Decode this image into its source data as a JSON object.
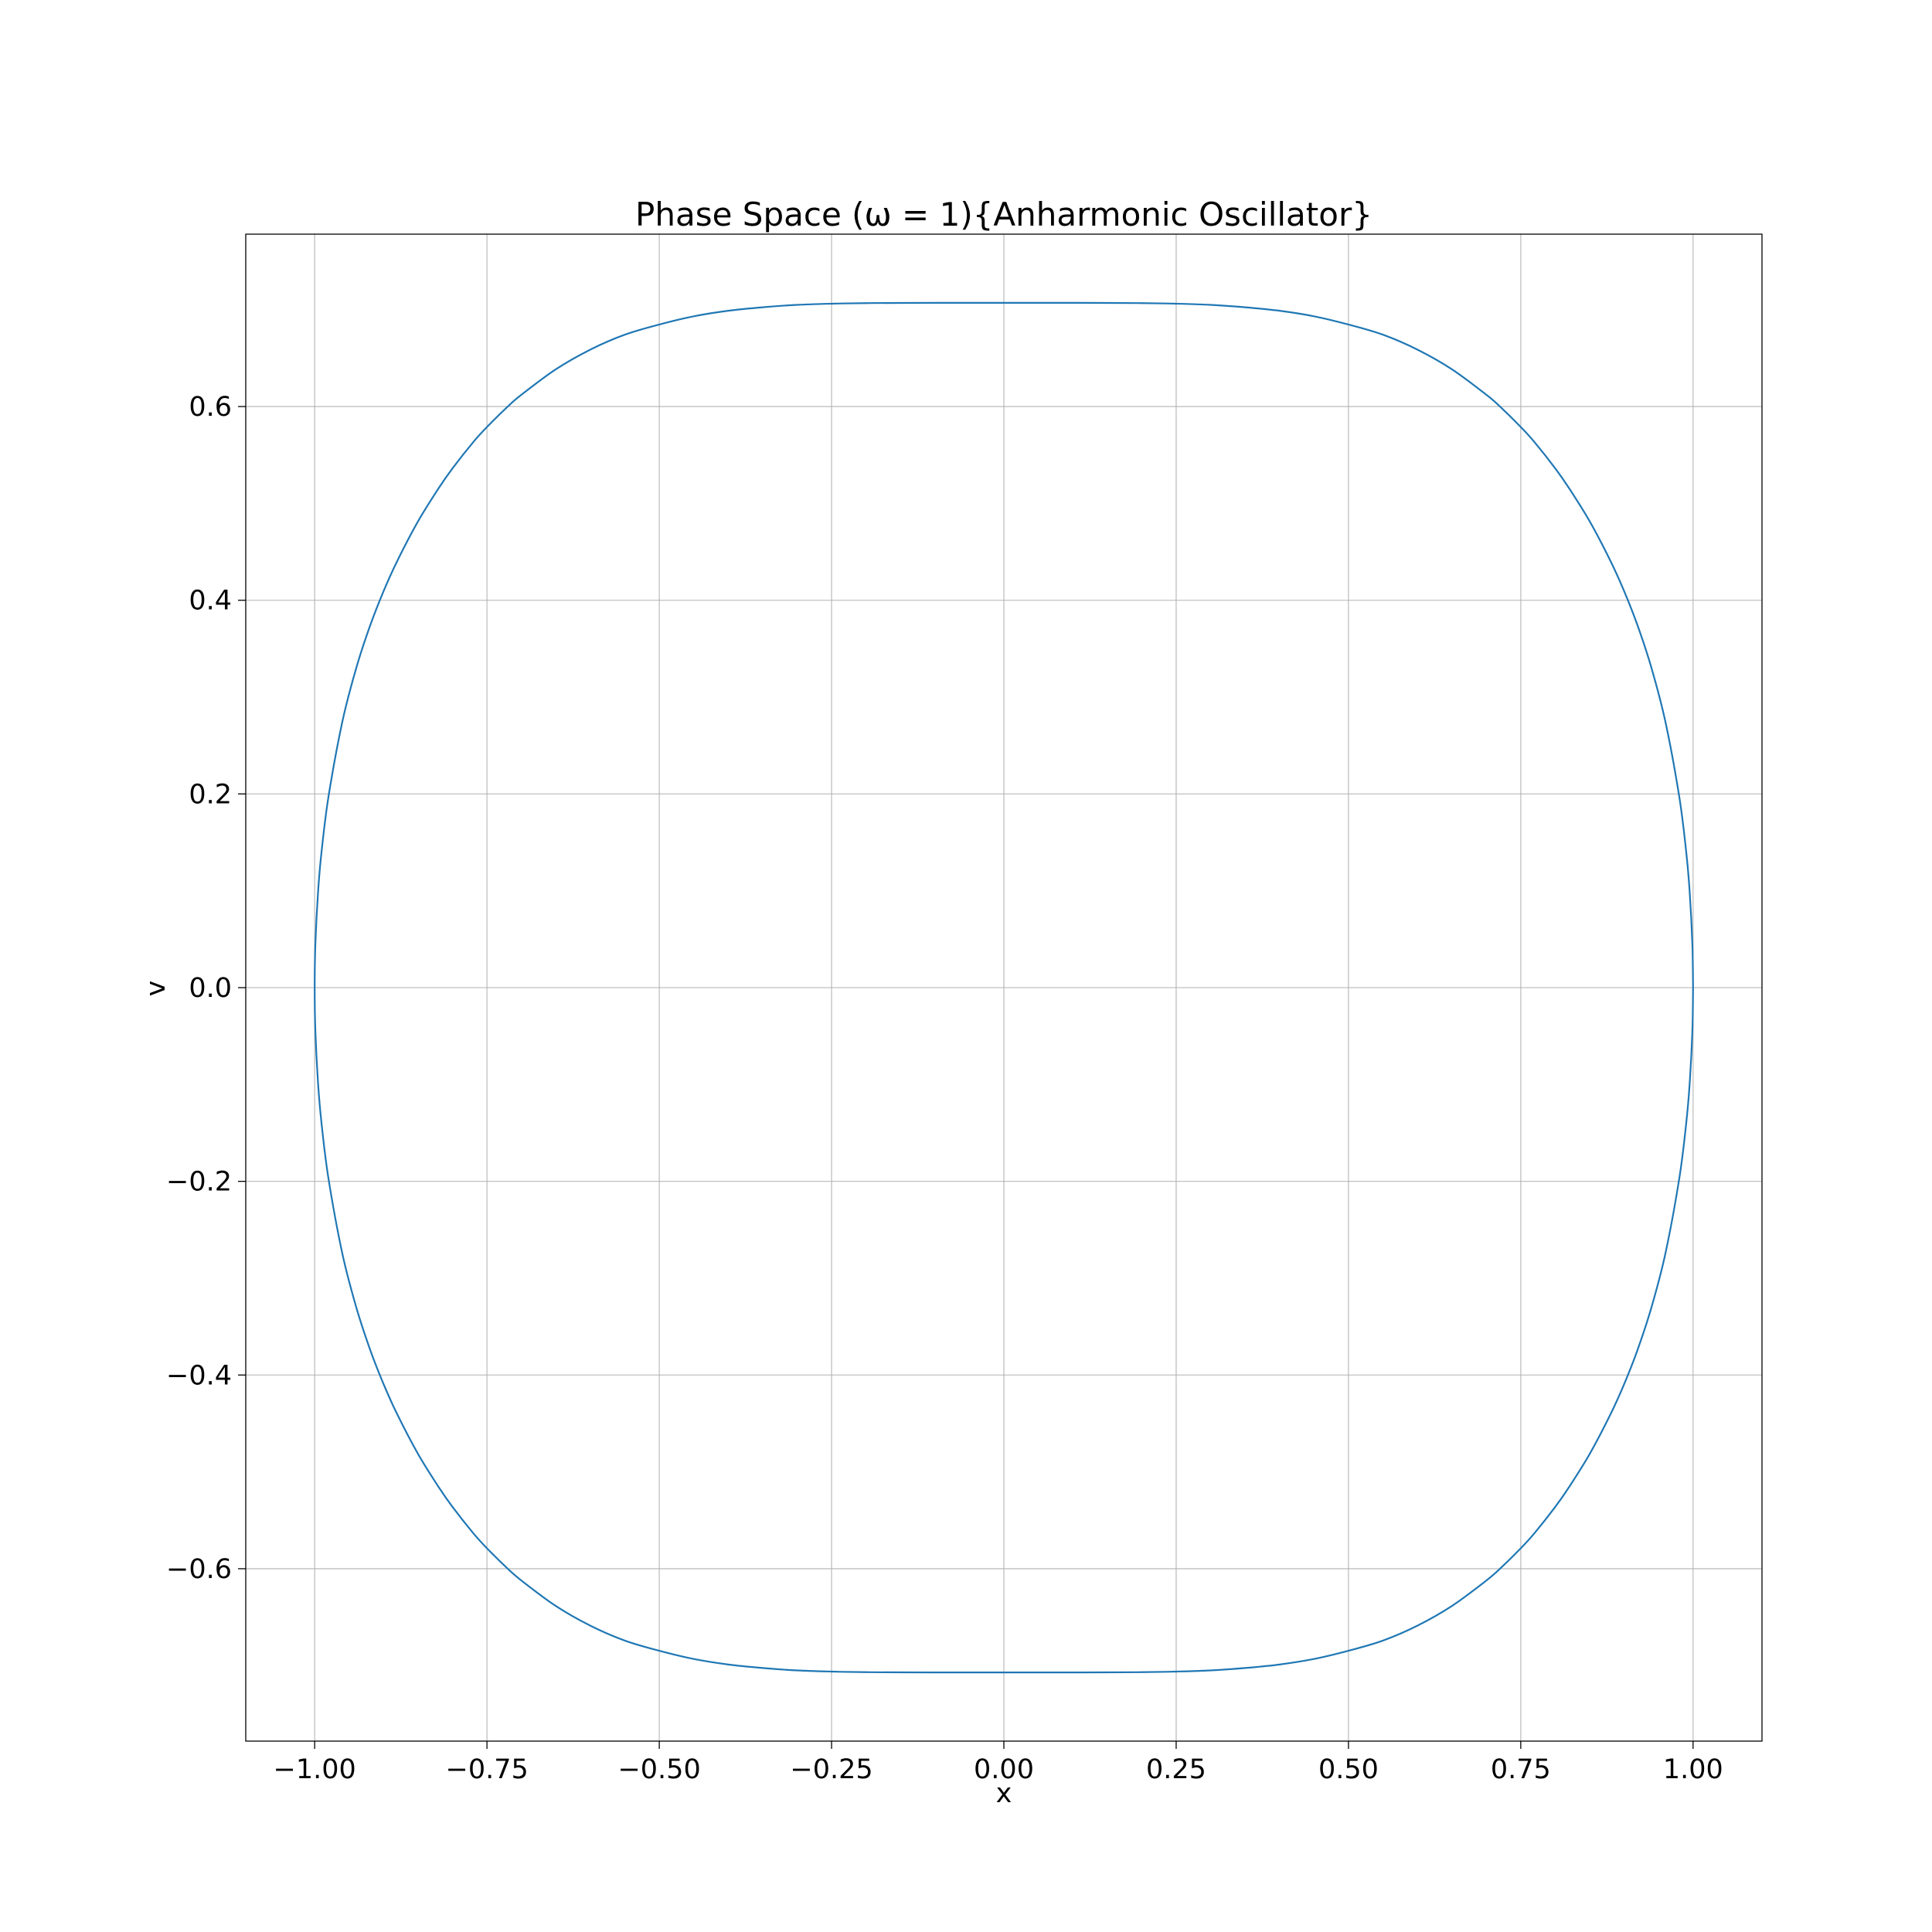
{
  "chart_data": {
    "type": "line",
    "title": "Phase Space (ω = 1){Anharmonic Oscillator}",
    "xlabel": "x",
    "ylabel": "v",
    "xlim": [
      -1.1,
      1.1
    ],
    "ylim": [
      -0.778,
      0.778
    ],
    "xticks": [
      -1.0,
      -0.75,
      -0.5,
      -0.25,
      0.0,
      0.25,
      0.5,
      0.75,
      1.0
    ],
    "xtick_labels": [
      "−1.00",
      "−0.75",
      "−0.50",
      "−0.25",
      "0.00",
      "0.25",
      "0.50",
      "0.75",
      "1.00"
    ],
    "yticks": [
      -0.6,
      -0.4,
      -0.2,
      0.0,
      0.2,
      0.4,
      0.6
    ],
    "ytick_labels": [
      "−0.6",
      "−0.4",
      "−0.2",
      "0.0",
      "0.2",
      "0.4",
      "0.6"
    ],
    "grid": true,
    "legend": "none",
    "series": [
      {
        "color": "#1f77b4",
        "x": [
          1.0,
          0.999,
          0.995,
          0.99,
          0.98,
          0.96,
          0.94,
          0.92,
          0.9,
          0.88,
          0.85,
          0.82,
          0.8,
          0.77,
          0.75,
          0.72,
          0.7,
          0.65,
          0.6,
          0.55,
          0.5,
          0.45,
          0.4,
          0.35,
          0.3,
          0.25,
          0.2,
          0.15,
          0.1,
          0.05,
          0.0,
          -0.05,
          -0.1,
          -0.15,
          -0.2,
          -0.25,
          -0.3,
          -0.35,
          -0.4,
          -0.45,
          -0.5,
          -0.55,
          -0.6,
          -0.65,
          -0.7,
          -0.72,
          -0.75,
          -0.77,
          -0.8,
          -0.82,
          -0.85,
          -0.88,
          -0.9,
          -0.92,
          -0.94,
          -0.96,
          -0.98,
          -0.99,
          -0.995,
          -0.999,
          -1.0,
          -0.999,
          -0.995,
          -0.99,
          -0.98,
          -0.96,
          -0.94,
          -0.92,
          -0.9,
          -0.88,
          -0.85,
          -0.82,
          -0.8,
          -0.77,
          -0.75,
          -0.72,
          -0.7,
          -0.65,
          -0.6,
          -0.55,
          -0.5,
          -0.45,
          -0.4,
          -0.35,
          -0.3,
          -0.25,
          -0.2,
          -0.15,
          -0.1,
          -0.05,
          0.0,
          0.05,
          0.1,
          0.15,
          0.2,
          0.25,
          0.3,
          0.35,
          0.4,
          0.45,
          0.5,
          0.55,
          0.6,
          0.65,
          0.7,
          0.72,
          0.75,
          0.77,
          0.8,
          0.82,
          0.85,
          0.88,
          0.9,
          0.92,
          0.94,
          0.96,
          0.98,
          0.99,
          0.995,
          0.999,
          1.0
        ],
        "y": [
          0.0,
          0.0447,
          0.0997,
          0.1404,
          0.197,
          0.2741,
          0.3292,
          0.3729,
          0.4094,
          0.4408,
          0.4815,
          0.5158,
          0.5362,
          0.5632,
          0.5789,
          0.5999,
          0.6122,
          0.6385,
          0.6588,
          0.6742,
          0.6847,
          0.6932,
          0.6989,
          0.7025,
          0.705,
          0.7062,
          0.7068,
          0.707,
          0.7071,
          0.7071,
          0.7071,
          0.7071,
          0.7071,
          0.707,
          0.7068,
          0.7062,
          0.705,
          0.7025,
          0.6989,
          0.6932,
          0.6847,
          0.6742,
          0.6588,
          0.6385,
          0.6122,
          0.5999,
          0.5789,
          0.5632,
          0.5362,
          0.5158,
          0.4815,
          0.4408,
          0.4094,
          0.3729,
          0.3292,
          0.2741,
          0.197,
          0.1404,
          0.0997,
          0.0447,
          0.0,
          -0.0447,
          -0.0997,
          -0.1404,
          -0.197,
          -0.2741,
          -0.3292,
          -0.3729,
          -0.4094,
          -0.4408,
          -0.4815,
          -0.5158,
          -0.5362,
          -0.5632,
          -0.5789,
          -0.5999,
          -0.6122,
          -0.6385,
          -0.6588,
          -0.6742,
          -0.6847,
          -0.6932,
          -0.6989,
          -0.7025,
          -0.705,
          -0.7062,
          -0.7068,
          -0.707,
          -0.7071,
          -0.7071,
          -0.7071,
          -0.7071,
          -0.7071,
          -0.707,
          -0.7068,
          -0.7062,
          -0.705,
          -0.7025,
          -0.6989,
          -0.6932,
          -0.6847,
          -0.6742,
          -0.6588,
          -0.6385,
          -0.6122,
          -0.5999,
          -0.5789,
          -0.5632,
          -0.5362,
          -0.5158,
          -0.4815,
          -0.4408,
          -0.4094,
          -0.3729,
          -0.3292,
          -0.2741,
          -0.197,
          -0.1404,
          -0.0997,
          -0.0447,
          0.0
        ]
      }
    ]
  }
}
